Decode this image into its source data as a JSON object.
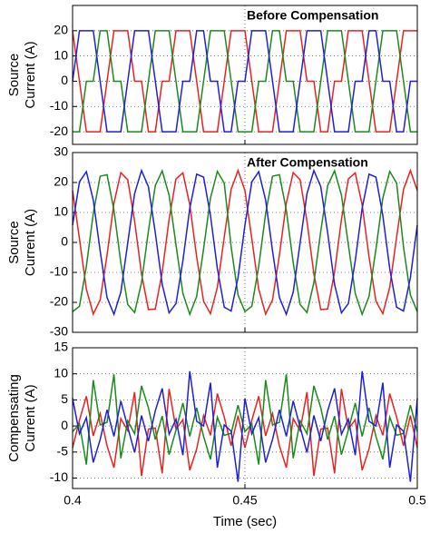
{
  "chart_data": [
    {
      "type": "line",
      "annotation": "Before Compensation",
      "ylabel": [
        "Source",
        "Current (A)"
      ],
      "x": [
        0.4,
        0.402,
        0.404,
        0.406,
        0.408,
        0.41,
        0.412,
        0.414,
        0.416,
        0.418,
        0.42,
        0.422,
        0.424,
        0.426,
        0.428,
        0.43,
        0.432,
        0.434,
        0.436,
        0.438,
        0.44,
        0.442,
        0.444,
        0.446,
        0.448,
        0.45,
        0.452,
        0.454,
        0.456,
        0.458,
        0.46,
        0.462,
        0.464,
        0.466,
        0.468,
        0.47,
        0.472,
        0.474,
        0.476,
        0.478,
        0.48,
        0.482,
        0.484,
        0.486,
        0.488,
        0.49,
        0.492,
        0.494,
        0.496,
        0.498,
        0.5
      ],
      "xlim": [
        0.4,
        0.5
      ],
      "xticks": [
        0.4,
        0.45,
        0.5
      ],
      "ylim": [
        -25,
        30
      ],
      "yticks": [
        20,
        10,
        0,
        -10,
        -20
      ],
      "grid": true,
      "series": [
        {
          "color": "#e8221f",
          "values": [
            20,
            0,
            -20,
            -20,
            -20,
            0,
            20,
            20,
            20,
            0,
            0,
            -20,
            -20,
            0,
            0,
            20,
            20,
            20,
            0,
            -20,
            -20,
            -20,
            0,
            20,
            20,
            20,
            0,
            -20,
            -20,
            -20,
            0,
            20,
            20,
            20,
            0,
            0,
            -20,
            -20,
            0,
            0,
            20,
            20,
            20,
            0,
            -20,
            -20,
            -20,
            0,
            20,
            20,
            20
          ]
        },
        {
          "color": "#1a8a1a",
          "values": [
            -20,
            -20,
            0,
            0,
            20,
            20,
            0,
            0,
            -20,
            -20,
            -20,
            0,
            20,
            20,
            20,
            0,
            -20,
            -20,
            -20,
            0,
            20,
            20,
            20,
            0,
            -20,
            -20,
            -20,
            0,
            0,
            20,
            20,
            0,
            0,
            -20,
            -20,
            -20,
            0,
            20,
            20,
            20,
            0,
            -20,
            -20,
            -20,
            0,
            20,
            20,
            20,
            0,
            -20,
            -20
          ]
        },
        {
          "color": "#1f1fd8",
          "values": [
            0,
            20,
            20,
            20,
            0,
            -20,
            -20,
            -20,
            0,
            20,
            20,
            20,
            0,
            -20,
            -20,
            -20,
            0,
            0,
            20,
            20,
            0,
            0,
            -20,
            -20,
            0,
            0,
            20,
            20,
            20,
            0,
            -20,
            -20,
            -20,
            0,
            20,
            20,
            20,
            0,
            -20,
            -20,
            -20,
            0,
            0,
            20,
            20,
            0,
            0,
            -20,
            -20,
            0,
            0
          ]
        }
      ]
    },
    {
      "type": "line",
      "annotation": "After Compensation",
      "ylabel": [
        "Source",
        "Current (A)"
      ],
      "x": [
        0.4,
        0.402,
        0.404,
        0.406,
        0.408,
        0.41,
        0.412,
        0.414,
        0.416,
        0.418,
        0.42,
        0.422,
        0.424,
        0.426,
        0.428,
        0.43,
        0.432,
        0.434,
        0.436,
        0.438,
        0.44,
        0.442,
        0.444,
        0.446,
        0.448,
        0.45,
        0.452,
        0.454,
        0.456,
        0.458,
        0.46,
        0.462,
        0.464,
        0.466,
        0.468,
        0.47,
        0.472,
        0.474,
        0.476,
        0.478,
        0.48,
        0.482,
        0.484,
        0.486,
        0.488,
        0.49,
        0.492,
        0.494,
        0.496,
        0.498,
        0.5
      ],
      "xlim": [
        0.4,
        0.5
      ],
      "xticks": [
        0.4,
        0.45,
        0.5
      ],
      "ylim": [
        -30,
        30
      ],
      "yticks": [
        30,
        20,
        10,
        0,
        -10,
        -20,
        -30
      ],
      "grid": true,
      "series": [
        {
          "color": "#e8221f",
          "values": [
            17.3,
            1.2,
            -15.6,
            -23.9,
            -19.2,
            -4.2,
            13.1,
            23.3,
            20.9,
            7.1,
            -10.5,
            -22.4,
            -22.2,
            -9.9,
            7.7,
            21.2,
            23.2,
            12.6,
            -4.8,
            -19.6,
            -23.8,
            -15,
            1.8,
            17.7,
            24,
            17.3,
            1.2,
            -15.6,
            -23.9,
            -19.2,
            -4.2,
            13.1,
            23.3,
            20.9,
            7.1,
            -10.5,
            -22.4,
            -22.2,
            -9.9,
            7.7,
            21.2,
            23.2,
            12.6,
            -4.8,
            -19.6,
            -23.8,
            -15,
            1.8,
            17.7,
            24,
            17.3
          ]
        },
        {
          "color": "#1a8a1a",
          "values": [
            -23.1,
            -21.3,
            -8,
            9.6,
            22.1,
            22.6,
            10.8,
            -6.8,
            -20.7,
            -23.4,
            -13.4,
            3.8,
            19,
            23.9,
            15.8,
            -0.8,
            -17,
            -24,
            -18,
            -2.2,
            14.8,
            23.7,
            19.8,
            -1.5,
            -17.5,
            -23.1,
            -21.3,
            -8,
            9.6,
            22.1,
            22.6,
            10.8,
            -6.8,
            -20.7,
            -23.4,
            -13.4,
            3.8,
            19,
            23.9,
            15.8,
            -0.8,
            -17,
            -24,
            -18,
            -2.2,
            14.8,
            23.7,
            19.8,
            -1.5,
            -17.5,
            -23.1
          ]
        },
        {
          "color": "#1f1fd8",
          "values": [
            5.8,
            20.2,
            23.6,
            14.2,
            -2.8,
            -18.4,
            -24,
            -16.6,
            -0.2,
            16.3,
            24,
            18.6,
            3.2,
            -14,
            -23.5,
            -20.4,
            -6.1,
            11.4,
            22.8,
            21.8,
            9,
            -8.7,
            -21.6,
            -22.9,
            -11.7,
            5.8,
            20.2,
            23.6,
            14.2,
            -2.8,
            -18.4,
            -24,
            -16.6,
            -0.2,
            16.3,
            24,
            18.6,
            3.2,
            -14,
            -23.5,
            -20.4,
            -6.1,
            11.4,
            22.8,
            21.8,
            9,
            -8.7,
            -21.6,
            -22.9,
            -11.7,
            5.8
          ]
        }
      ]
    },
    {
      "type": "line",
      "ylabel": [
        "Compensating",
        "Current (A)"
      ],
      "xlabel": "Time (sec)",
      "x": [
        0.4,
        0.402,
        0.404,
        0.406,
        0.408,
        0.41,
        0.412,
        0.414,
        0.416,
        0.418,
        0.42,
        0.422,
        0.424,
        0.426,
        0.428,
        0.43,
        0.432,
        0.434,
        0.436,
        0.438,
        0.44,
        0.442,
        0.444,
        0.446,
        0.448,
        0.45,
        0.452,
        0.454,
        0.456,
        0.458,
        0.46,
        0.462,
        0.464,
        0.466,
        0.468,
        0.47,
        0.472,
        0.474,
        0.476,
        0.478,
        0.48,
        0.482,
        0.484,
        0.486,
        0.488,
        0.49,
        0.492,
        0.494,
        0.496,
        0.498,
        0.5
      ],
      "xlim": [
        0.4,
        0.5
      ],
      "xticks": [
        0.4,
        0.45,
        0.5
      ],
      "ylim": [
        -12,
        15
      ],
      "yticks": [
        15,
        10,
        5,
        0,
        -5,
        -10
      ],
      "grid": true,
      "series": [
        {
          "color": "#e8221f",
          "values": [
            -4.2,
            1.1,
            5.7,
            -1.9,
            2.4,
            -3.8,
            -8,
            1.4,
            -0.9,
            6.5,
            -9.6,
            -0.6,
            -0.4,
            -9.1,
            7.1,
            -0.6,
            1.2,
            -8.5,
            -4.4,
            2,
            -1.8,
            6.2,
            1.7,
            -3.8,
            2,
            -4.2,
            1.1,
            5.7,
            -1.9,
            2.4,
            -3.8,
            -8,
            1.4,
            -0.9,
            6.5,
            -9.6,
            -0.6,
            -0.4,
            -9.1,
            7.1,
            -0.6,
            1.2,
            -8.5,
            -4.4,
            2,
            -1.8,
            6.2,
            1.7,
            -3.8,
            2,
            -4.2
          ]
        },
        {
          "color": "#1a8a1a",
          "values": [
            -1.1,
            0.4,
            -7.4,
            8.8,
            0.2,
            0.7,
            9.9,
            -6.2,
            1,
            -1.5,
            7.7,
            3.5,
            -2.6,
            1.9,
            -5.5,
            -0.8,
            4.4,
            -2,
            3.5,
            -2,
            -6.4,
            1.7,
            -1.8,
            -1.4,
            4,
            -1.1,
            0.4,
            -7.4,
            8.8,
            0.2,
            0.7,
            9.9,
            -6.2,
            1,
            -1.5,
            7.7,
            3.5,
            -2.6,
            1.9,
            -5.5,
            -0.8,
            4.4,
            -2,
            3.5,
            -2,
            -6.4,
            1.7,
            -1.8,
            -1.4,
            4,
            -1.1
          ]
        },
        {
          "color": "#1f1fd8",
          "values": [
            5.3,
            -1.5,
            1.6,
            -7,
            -2.6,
            3.1,
            -2,
            4.8,
            -0.2,
            -5.1,
            2,
            -2.9,
            2.9,
            7.2,
            -1.6,
            1.3,
            -5.6,
            10.5,
            0.9,
            0,
            8.3,
            -8,
            0.2,
            -1,
            -10.7,
            5.3,
            -1.5,
            1.6,
            -7,
            -2.6,
            3.1,
            -2,
            4.8,
            -0.2,
            -5.1,
            2,
            -2.9,
            2.9,
            7.2,
            -1.6,
            1.3,
            -5.6,
            10.5,
            0.9,
            0,
            8.3,
            -8,
            0.2,
            -1,
            -10.7,
            5.3
          ]
        }
      ]
    }
  ]
}
